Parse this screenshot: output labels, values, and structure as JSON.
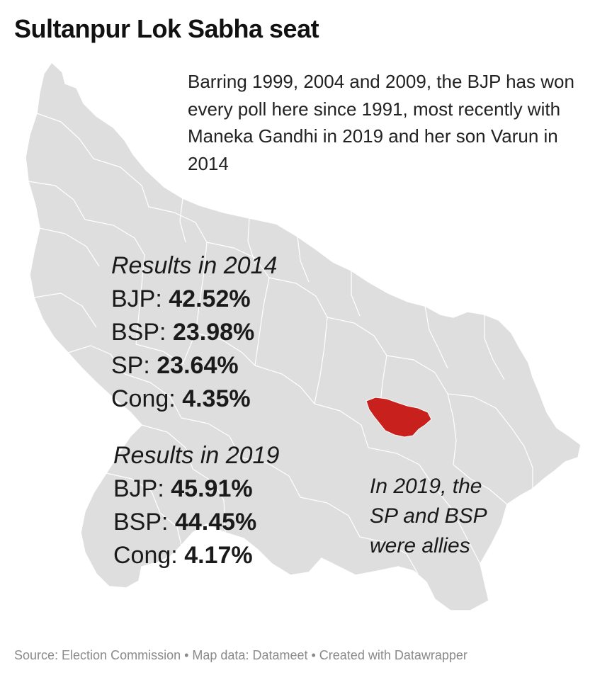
{
  "title": "Sultanpur Lok Sabha seat",
  "intro": "Barring 1999, 2004 and 2009, the BJP has won every poll here since 1991, most recently with Maneka Gandhi in 2019 and her son Varun in 2014",
  "results_2014": {
    "heading": "Results in 2014",
    "rows": [
      {
        "party": "BJP:",
        "value": "42.52%"
      },
      {
        "party": "BSP:",
        "value": "23.98%"
      },
      {
        "party": "SP:",
        "value": "23.64%"
      },
      {
        "party": "Cong:",
        "value": "4.35%"
      }
    ]
  },
  "results_2019": {
    "heading": "Results in 2019",
    "rows": [
      {
        "party": "BJP:",
        "value": "45.91%"
      },
      {
        "party": "BSP:",
        "value": "44.45%"
      },
      {
        "party": "Cong:",
        "value": "4.17%"
      }
    ]
  },
  "note": [
    "In 2019, the",
    "SP and BSP",
    "were allies"
  ],
  "footer": "Source: Election Commission • Map data: Datameet • Created with Datawrapper",
  "colors": {
    "region_fill": "#dedede",
    "district_border": "#ffffff",
    "highlight": "#c8201c"
  }
}
